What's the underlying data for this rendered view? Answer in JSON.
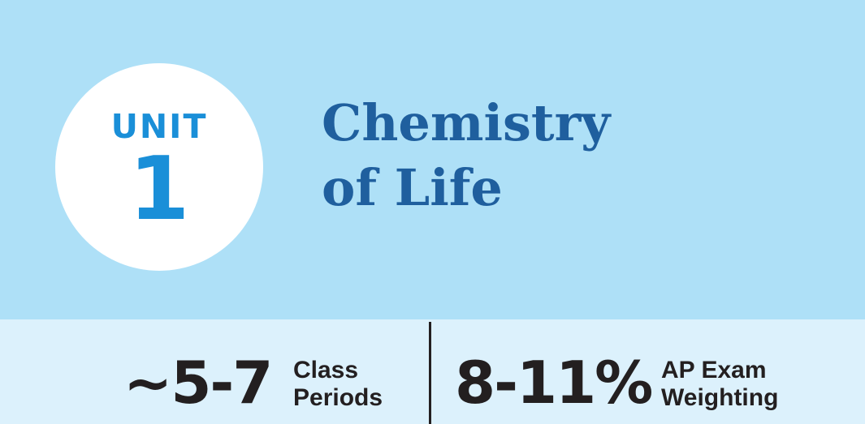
{
  "unit": {
    "label": "UNIT",
    "number": "1",
    "title_line1": "Chemistry",
    "title_line2": "of Life"
  },
  "stats": {
    "class_periods": {
      "value": "~5-7",
      "label_line1": "Class",
      "label_line2": "Periods"
    },
    "exam_weighting": {
      "value": "8-11%",
      "label_line1": "AP Exam",
      "label_line2": "Weighting"
    }
  },
  "colors": {
    "banner_background": "#aee0f7",
    "stats_background": "#dcf1fc",
    "unit_accent": "#1a8fd8",
    "title_color": "#1f5f9e",
    "stat_text": "#231f20"
  }
}
